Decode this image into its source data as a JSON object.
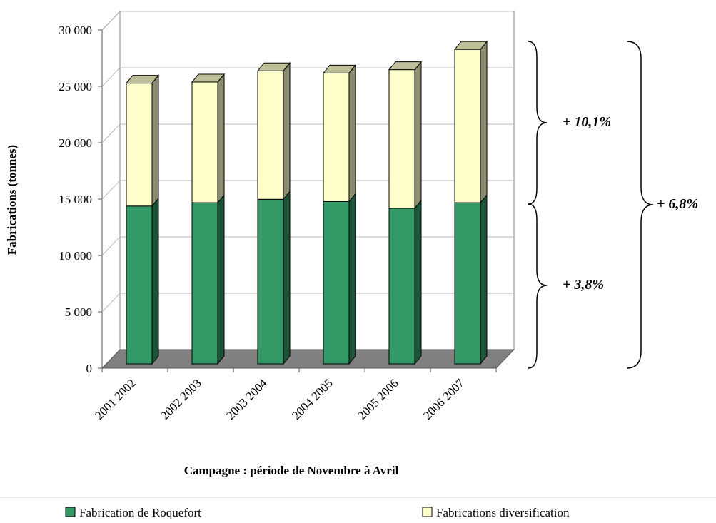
{
  "chart_data": {
    "type": "bar3d_stacked",
    "y_label": "Fabrications (tonnes)",
    "x_label": "Campagne : période de Novembre à Avril",
    "categories": [
      "2001 2002",
      "2002 2003",
      "2003 2004",
      "2004 2005",
      "2005 2006",
      "2006 2007"
    ],
    "series": [
      {
        "name": "Fabrication de Roquefort",
        "color": "#339966",
        "values": [
          14000,
          14300,
          14600,
          14400,
          13800,
          14300
        ]
      },
      {
        "name": "Fabrications diversification",
        "color": "#ffffcc",
        "values": [
          10900,
          10700,
          11400,
          11400,
          12300,
          13600
        ]
      }
    ],
    "ylim": [
      0,
      30000
    ],
    "yticks": [
      0,
      {
        "value": 5000,
        "label": "5 000"
      },
      {
        "value": 10000,
        "label": "10 000"
      },
      {
        "value": 15000,
        "label": "15 000"
      },
      {
        "value": 20000,
        "label": "20 000"
      },
      {
        "value": 25000,
        "label": "25 000"
      },
      {
        "value": 30000,
        "label": "30 000"
      }
    ],
    "grid": true,
    "annotations": [
      "+ 10,1%",
      "+ 3,8%",
      "+ 6,8%"
    ]
  }
}
